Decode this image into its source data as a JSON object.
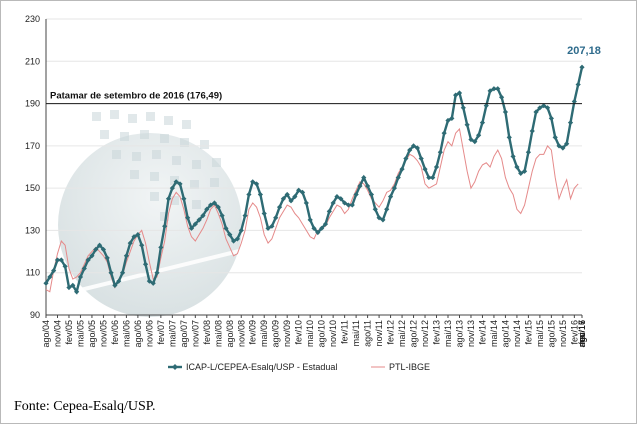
{
  "chart_data": {
    "type": "line",
    "yticks": [
      90,
      110,
      130,
      150,
      170,
      190,
      210,
      230
    ],
    "ylim": [
      90,
      230
    ],
    "xtick_labels": [
      "ago/04",
      "nov/04",
      "fev/05",
      "mai/05",
      "ago/05",
      "nov/05",
      "fev/06",
      "mai/06",
      "ago/06",
      "nov/06",
      "fev/07",
      "mai/07",
      "ago/07",
      "nov/07",
      "fev/08",
      "mai/08",
      "ago/08",
      "nov/08",
      "fev/09",
      "mai/09",
      "ago/09",
      "nov/09",
      "fev/10",
      "mai/10",
      "ago/10",
      "nov/10",
      "fev/11",
      "mai/11",
      "ago/11",
      "nov/11",
      "fev/12",
      "mai/12",
      "ago/12",
      "nov/12",
      "fev/13",
      "mai/13",
      "ago/13",
      "nov/13",
      "fev/14",
      "mai/14",
      "ago/14",
      "nov/14",
      "fev/15",
      "mai/15",
      "ago/15",
      "nov/15",
      "fev/16",
      "mai/16",
      "ago/16",
      "nov/16",
      "fev/17",
      "mai/17",
      "ago/17"
    ],
    "reference_line": {
      "value": 190,
      "label": "Patamar de setembro de 2016 (176,49)"
    },
    "end_label": "207,18",
    "series": [
      {
        "name": "ICAP-L/CEPEA-Esalq/USP - Estadual",
        "color": "#2e6b74",
        "marker": "diamond",
        "values": [
          105,
          108,
          111,
          116,
          116,
          113,
          103,
          104,
          101,
          108,
          112,
          116,
          118,
          121,
          123,
          121,
          117,
          110,
          104,
          106,
          110,
          118,
          124,
          127,
          128,
          123,
          114,
          106,
          105,
          110,
          122,
          132,
          145,
          150,
          153,
          152,
          145,
          136,
          131,
          133,
          135,
          137,
          140,
          142,
          143,
          141,
          137,
          131,
          128,
          125,
          126,
          130,
          137,
          147,
          153,
          152,
          147,
          138,
          131,
          132,
          136,
          141,
          145,
          147,
          144,
          146,
          149,
          148,
          143,
          135,
          131,
          129,
          131,
          133,
          139,
          143,
          146,
          145,
          143,
          142,
          142,
          147,
          151,
          155,
          151,
          147,
          140,
          136,
          135,
          140,
          146,
          150,
          155,
          159,
          164,
          168,
          170,
          169,
          164,
          159,
          155,
          155,
          160,
          167,
          176,
          182,
          183,
          194,
          195,
          188,
          180,
          173,
          172,
          175,
          181,
          189,
          196,
          197,
          197,
          193,
          186,
          174,
          165,
          160,
          157,
          158,
          167,
          177,
          186,
          188,
          189,
          188,
          183,
          174,
          170,
          169,
          171,
          181,
          191,
          199,
          207.18
        ]
      },
      {
        "name": "PTL-IBGE",
        "color": "#e58a8a",
        "values": [
          102,
          101,
          111,
          119,
          125,
          123,
          112,
          107,
          108,
          110,
          114,
          118,
          120,
          122,
          120,
          118,
          115,
          108,
          103,
          107,
          109,
          115,
          120,
          125,
          128,
          130,
          124,
          115,
          107,
          108,
          117,
          125,
          138,
          145,
          148,
          146,
          140,
          132,
          127,
          125,
          128,
          131,
          135,
          140,
          142,
          138,
          133,
          126,
          122,
          118,
          119,
          124,
          130,
          140,
          143,
          141,
          136,
          128,
          124,
          126,
          131,
          136,
          139,
          142,
          141,
          138,
          136,
          133,
          130,
          127,
          126,
          130,
          131,
          132,
          136,
          139,
          142,
          141,
          138,
          140,
          145,
          149,
          153,
          152,
          149,
          145,
          143,
          141,
          144,
          148,
          149,
          152,
          157,
          160,
          163,
          166,
          165,
          163,
          160,
          152,
          150,
          151,
          152,
          160,
          168,
          172,
          170,
          176,
          178,
          168,
          158,
          150,
          153,
          158,
          161,
          162,
          160,
          165,
          168,
          164,
          155,
          150,
          147,
          140,
          138,
          142,
          150,
          158,
          164,
          166,
          166,
          170,
          168,
          155,
          145,
          150,
          154,
          145,
          150,
          152
        ]
      }
    ]
  },
  "source": "Fonte: Cepea-Esalq/USP."
}
